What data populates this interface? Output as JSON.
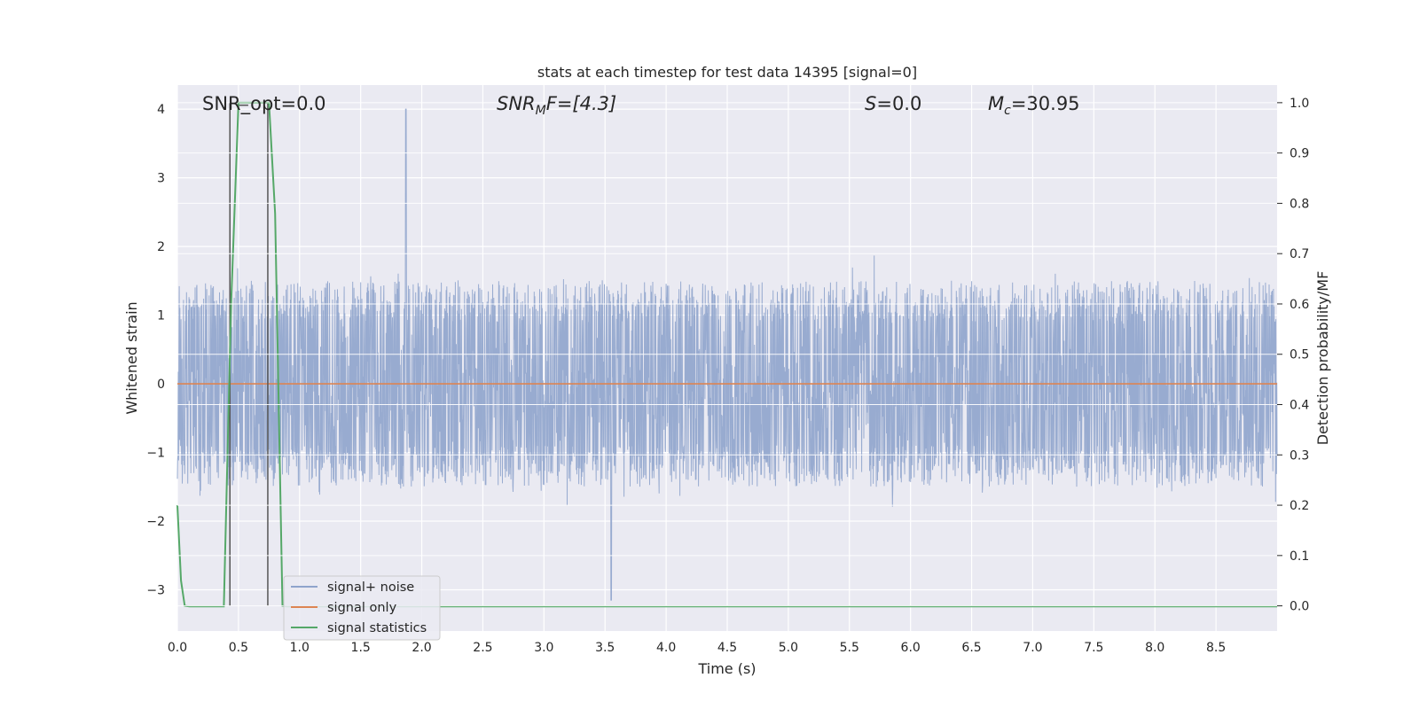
{
  "chart_data": {
    "type": "line",
    "title": "stats at each timestep for test data 14395 [signal=0]",
    "xlabel": "Time (s)",
    "ylabel": "Whitened strain",
    "y2label": "Detection probability/MF",
    "xlim": [
      0,
      9.0
    ],
    "ylim": [
      -3.6,
      4.35
    ],
    "y2lim": [
      -0.05,
      1.035
    ],
    "xticks": [
      "0.0",
      "0.5",
      "1.0",
      "1.5",
      "2.0",
      "2.5",
      "3.0",
      "3.5",
      "4.0",
      "4.5",
      "5.0",
      "5.5",
      "6.0",
      "6.5",
      "7.0",
      "7.5",
      "8.0",
      "8.5"
    ],
    "yticks": [
      "4",
      "3",
      "2",
      "1",
      "0",
      "−1",
      "−2",
      "−3"
    ],
    "y2ticks": [
      "1.0",
      "0.9",
      "0.8",
      "0.7",
      "0.6",
      "0.5",
      "0.4",
      "0.3",
      "0.2",
      "0.1",
      "0.0"
    ],
    "grid": true,
    "legend_position": "lower-left",
    "annotations": {
      "snr_opt": "SNR_opt=0.0",
      "snr_mf_main": "SNR",
      "snr_mf_sub": "M",
      "snr_mf_rest": "F=[4.3]",
      "s_main": "S",
      "s_rest": "=0.0",
      "mc_main": "M",
      "mc_sub": "c",
      "mc_rest": "=30.95"
    },
    "vertical_markers": [
      0.43,
      0.74
    ],
    "series": [
      {
        "name": "signal+ noise",
        "color": "#8fa4cc",
        "description_values": {
          "envelope_upper_typical": 1.8,
          "envelope_lower_typical": -1.8,
          "max": 4.0,
          "min": -3.15
        }
      },
      {
        "name": "signal only",
        "color": "#dd8452",
        "values_constant": 0.0
      },
      {
        "name": "signal statistics",
        "color": "#55a868",
        "axis": "right",
        "x": [
          0.0,
          0.03,
          0.06,
          0.1,
          0.2,
          0.3,
          0.38,
          0.44,
          0.5,
          0.55,
          0.6,
          0.65,
          0.7,
          0.75,
          0.8,
          0.86,
          0.9,
          1.0,
          2.0,
          3.0,
          4.0,
          5.0,
          6.0,
          7.0,
          8.0,
          9.0
        ],
        "values": [
          0.2,
          0.05,
          0.0,
          -0.001,
          -0.001,
          -0.001,
          -0.001,
          0.6,
          1.0,
          1.0,
          1.0,
          1.0,
          1.0,
          1.0,
          0.78,
          0.0,
          -0.001,
          -0.001,
          -0.001,
          -0.001,
          -0.001,
          -0.001,
          -0.001,
          -0.001,
          -0.001,
          -0.001
        ]
      }
    ]
  }
}
